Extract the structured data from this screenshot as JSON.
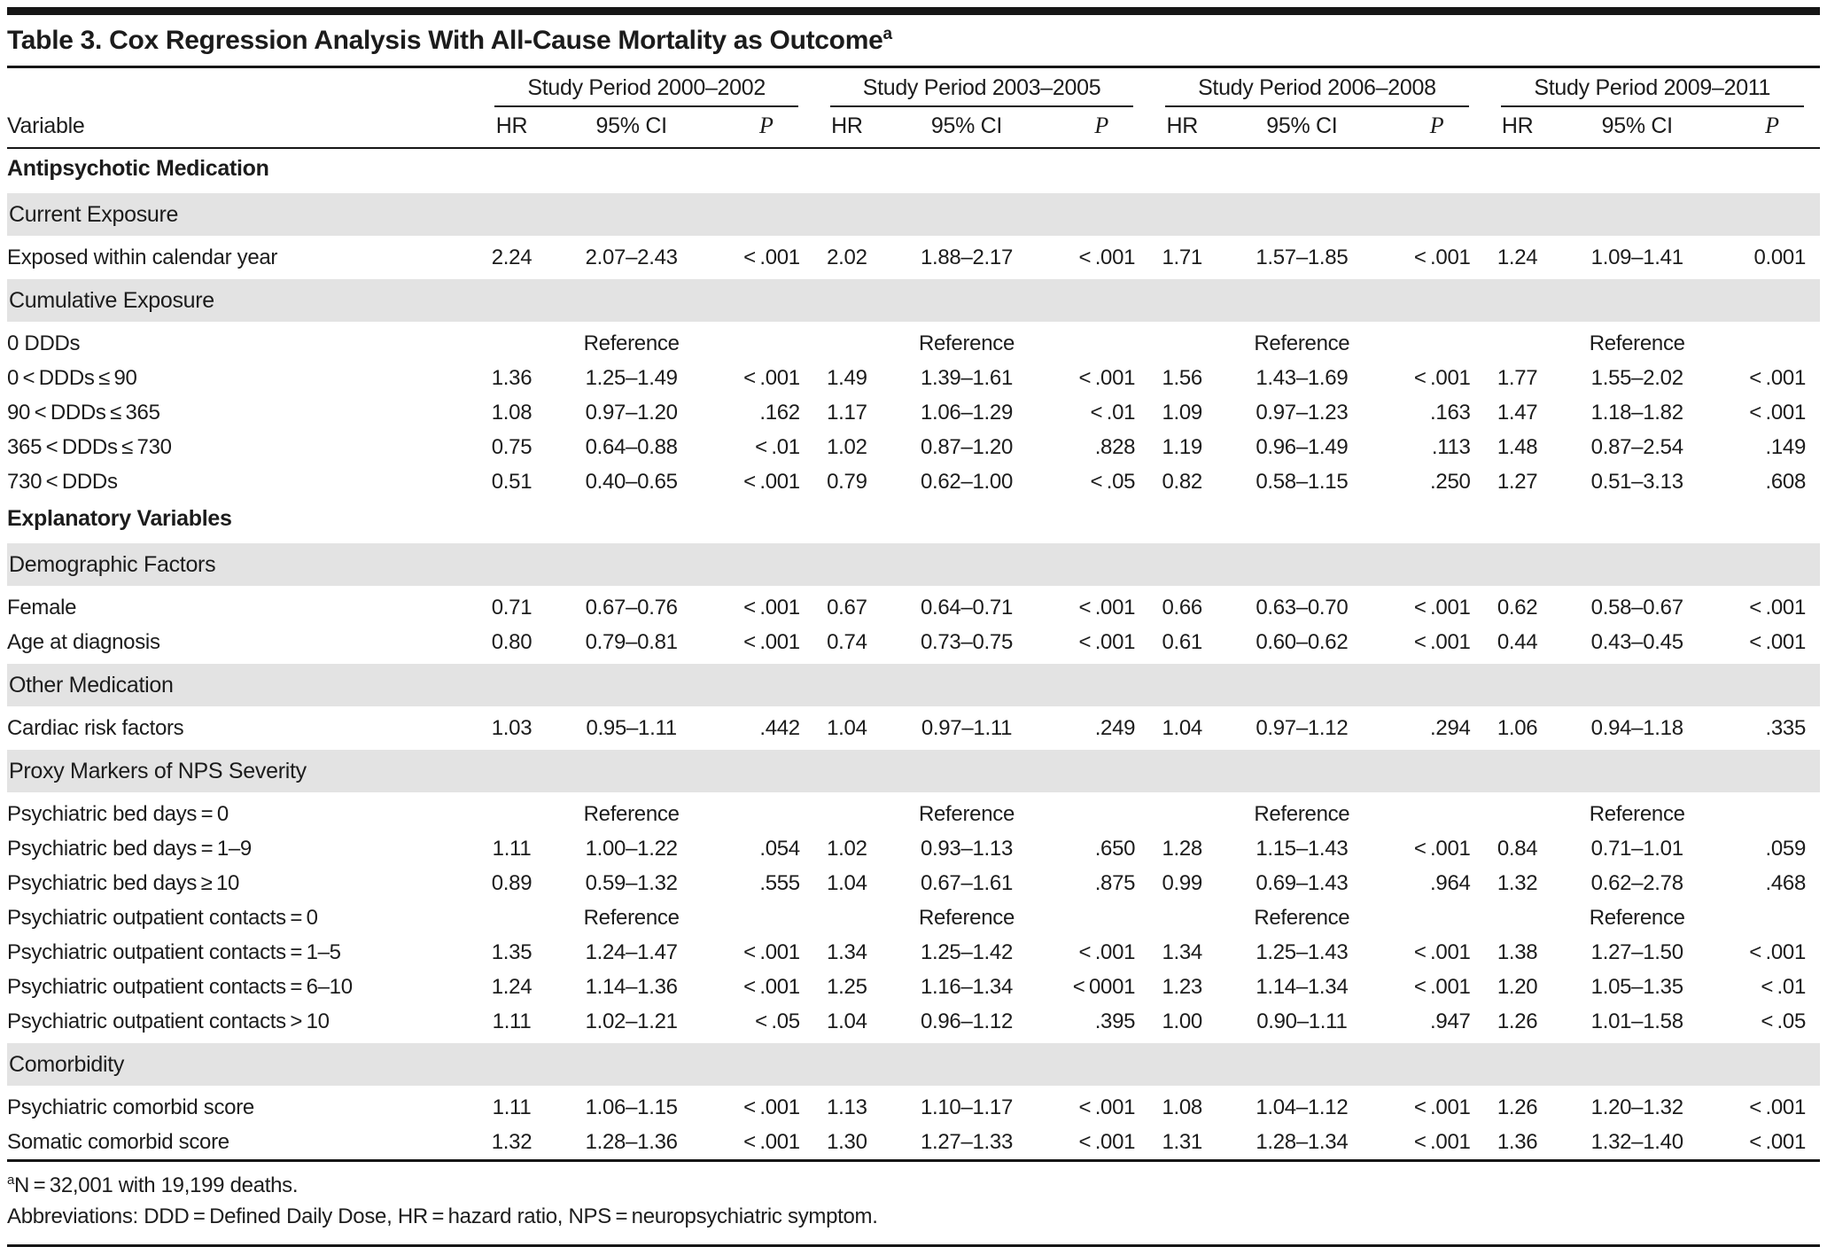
{
  "title": {
    "text": "Table 3. Cox Regression Analysis With All-Cause Mortality as Outcome",
    "superscript": "a"
  },
  "header": {
    "variable_label": "Variable",
    "groups": [
      {
        "label": "Study Period 2000–2002"
      },
      {
        "label": "Study Period 2003–2005"
      },
      {
        "label": "Study Period 2006–2008"
      },
      {
        "label": "Study Period 2009–2011"
      }
    ],
    "sub_columns": [
      "HR",
      "95% CI",
      "P"
    ]
  },
  "rows": [
    {
      "type": "section",
      "label": "Antipsychotic Medication"
    },
    {
      "type": "subsection",
      "label": "Current Exposure"
    },
    {
      "type": "data",
      "label": "Exposed within calendar year",
      "cells": [
        [
          "2.24",
          "2.07–2.43",
          "< .001"
        ],
        [
          "2.02",
          "1.88–2.17",
          "< .001"
        ],
        [
          "1.71",
          "1.57–1.85",
          "< .001"
        ],
        [
          "1.24",
          "1.09–1.41",
          "0.001"
        ]
      ]
    },
    {
      "type": "subsection",
      "label": "Cumulative Exposure"
    },
    {
      "type": "data",
      "label": "0 DDDs",
      "cells": [
        [
          "",
          "Reference",
          ""
        ],
        [
          "",
          "Reference",
          ""
        ],
        [
          "",
          "Reference",
          ""
        ],
        [
          "",
          "Reference",
          ""
        ]
      ]
    },
    {
      "type": "data",
      "label": "0 < DDDs ≤ 90",
      "cells": [
        [
          "1.36",
          "1.25–1.49",
          "< .001"
        ],
        [
          "1.49",
          "1.39–1.61",
          "< .001"
        ],
        [
          "1.56",
          "1.43–1.69",
          "< .001"
        ],
        [
          "1.77",
          "1.55–2.02",
          "< .001"
        ]
      ]
    },
    {
      "type": "data",
      "label": "90 < DDDs ≤ 365",
      "cells": [
        [
          "1.08",
          "0.97–1.20",
          ".162"
        ],
        [
          "1.17",
          "1.06–1.29",
          "< .01"
        ],
        [
          "1.09",
          "0.97–1.23",
          ".163"
        ],
        [
          "1.47",
          "1.18–1.82",
          "< .001"
        ]
      ]
    },
    {
      "type": "data",
      "label": "365 < DDDs ≤ 730",
      "cells": [
        [
          "0.75",
          "0.64–0.88",
          "< .01"
        ],
        [
          "1.02",
          "0.87–1.20",
          ".828"
        ],
        [
          "1.19",
          "0.96–1.49",
          ".113"
        ],
        [
          "1.48",
          "0.87–2.54",
          ".149"
        ]
      ]
    },
    {
      "type": "data",
      "label": "730 < DDDs",
      "cells": [
        [
          "0.51",
          "0.40–0.65",
          "< .001"
        ],
        [
          "0.79",
          "0.62–1.00",
          "< .05"
        ],
        [
          "0.82",
          "0.58–1.15",
          ".250"
        ],
        [
          "1.27",
          "0.51–3.13",
          ".608"
        ]
      ]
    },
    {
      "type": "section",
      "label": "Explanatory Variables"
    },
    {
      "type": "subsection",
      "label": "Demographic Factors"
    },
    {
      "type": "data",
      "label": "Female",
      "cells": [
        [
          "0.71",
          "0.67–0.76",
          "< .001"
        ],
        [
          "0.67",
          "0.64–0.71",
          "< .001"
        ],
        [
          "0.66",
          "0.63–0.70",
          "< .001"
        ],
        [
          "0.62",
          "0.58–0.67",
          "< .001"
        ]
      ]
    },
    {
      "type": "data",
      "label": "Age at diagnosis",
      "cells": [
        [
          "0.80",
          "0.79–0.81",
          "< .001"
        ],
        [
          "0.74",
          "0.73–0.75",
          "< .001"
        ],
        [
          "0.61",
          "0.60–0.62",
          "< .001"
        ],
        [
          "0.44",
          "0.43–0.45",
          "< .001"
        ]
      ]
    },
    {
      "type": "subsection",
      "label": "Other Medication"
    },
    {
      "type": "data",
      "label": "Cardiac risk factors",
      "cells": [
        [
          "1.03",
          "0.95–1.11",
          ".442"
        ],
        [
          "1.04",
          "0.97–1.11",
          ".249"
        ],
        [
          "1.04",
          "0.97–1.12",
          ".294"
        ],
        [
          "1.06",
          "0.94–1.18",
          ".335"
        ]
      ]
    },
    {
      "type": "subsection",
      "label": "Proxy Markers of NPS Severity"
    },
    {
      "type": "data",
      "label": "Psychiatric bed days = 0",
      "cells": [
        [
          "",
          "Reference",
          ""
        ],
        [
          "",
          "Reference",
          ""
        ],
        [
          "",
          "Reference",
          ""
        ],
        [
          "",
          "Reference",
          ""
        ]
      ]
    },
    {
      "type": "data",
      "label": "Psychiatric bed days = 1–9",
      "cells": [
        [
          "1.11",
          "1.00–1.22",
          ".054"
        ],
        [
          "1.02",
          "0.93–1.13",
          ".650"
        ],
        [
          "1.28",
          "1.15–1.43",
          "< .001"
        ],
        [
          "0.84",
          "0.71–1.01",
          ".059"
        ]
      ]
    },
    {
      "type": "data",
      "label": "Psychiatric bed days ≥ 10",
      "cells": [
        [
          "0.89",
          "0.59–1.32",
          ".555"
        ],
        [
          "1.04",
          "0.67–1.61",
          ".875"
        ],
        [
          "0.99",
          "0.69–1.43",
          ".964"
        ],
        [
          "1.32",
          "0.62–2.78",
          ".468"
        ]
      ]
    },
    {
      "type": "data",
      "label": "Psychiatric outpatient contacts = 0",
      "cells": [
        [
          "",
          "Reference",
          ""
        ],
        [
          "",
          "Reference",
          ""
        ],
        [
          "",
          "Reference",
          ""
        ],
        [
          "",
          "Reference",
          ""
        ]
      ]
    },
    {
      "type": "data",
      "label": "Psychiatric outpatient contacts = 1–5",
      "cells": [
        [
          "1.35",
          "1.24–1.47",
          "< .001"
        ],
        [
          "1.34",
          "1.25–1.42",
          "< .001"
        ],
        [
          "1.34",
          "1.25–1.43",
          "< .001"
        ],
        [
          "1.38",
          "1.27–1.50",
          "< .001"
        ]
      ]
    },
    {
      "type": "data",
      "label": "Psychiatric outpatient contacts = 6–10",
      "cells": [
        [
          "1.24",
          "1.14–1.36",
          "< .001"
        ],
        [
          "1.25",
          "1.16–1.34",
          "< 0001"
        ],
        [
          "1.23",
          "1.14–1.34",
          "< .001"
        ],
        [
          "1.20",
          "1.05–1.35",
          "< .01"
        ]
      ]
    },
    {
      "type": "data",
      "label": "Psychiatric outpatient contacts > 10",
      "cells": [
        [
          "1.11",
          "1.02–1.21",
          "< .05"
        ],
        [
          "1.04",
          "0.96–1.12",
          ".395"
        ],
        [
          "1.00",
          "0.90–1.11",
          ".947"
        ],
        [
          "1.26",
          "1.01–1.58",
          "< .05"
        ]
      ]
    },
    {
      "type": "subsection",
      "label": "Comorbidity"
    },
    {
      "type": "data",
      "label": "Psychiatric comorbid score",
      "cells": [
        [
          "1.11",
          "1.06–1.15",
          "< .001"
        ],
        [
          "1.13",
          "1.10–1.17",
          "< .001"
        ],
        [
          "1.08",
          "1.04–1.12",
          "< .001"
        ],
        [
          "1.26",
          "1.20–1.32",
          "< .001"
        ]
      ]
    },
    {
      "type": "data",
      "label": "Somatic comorbid score",
      "cells": [
        [
          "1.32",
          "1.28–1.36",
          "< .001"
        ],
        [
          "1.30",
          "1.27–1.33",
          "< .001"
        ],
        [
          "1.31",
          "1.28–1.34",
          "< .001"
        ],
        [
          "1.36",
          "1.32–1.40",
          "< .001"
        ]
      ]
    }
  ],
  "footnotes": [
    {
      "marker": "a",
      "text": "N = 32,001 with 19,199 deaths."
    },
    {
      "marker": "",
      "text": "Abbreviations: DDD = Defined Daily Dose, HR = hazard ratio, NPS = neuropsychiatric symptom."
    }
  ]
}
